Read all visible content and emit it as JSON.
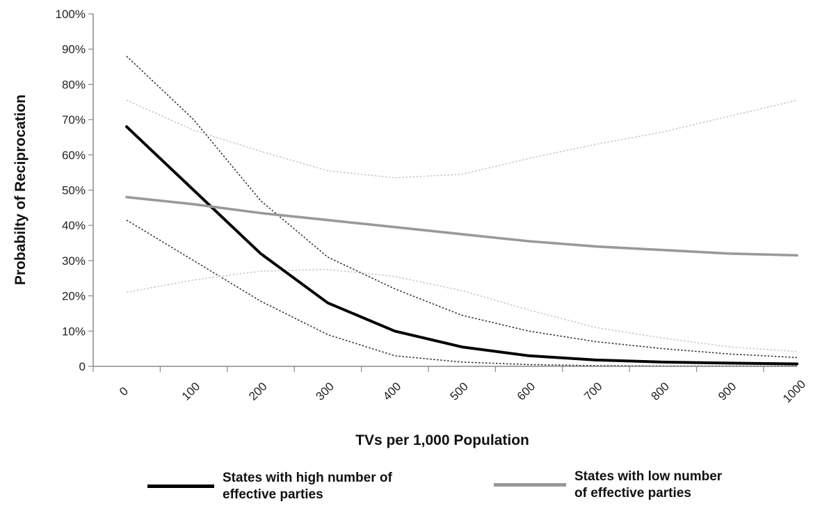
{
  "chart_data": {
    "type": "line",
    "title": "",
    "xlabel": "TVs per 1,000 Population",
    "ylabel": "Probabilty of Reciprocation",
    "x": [
      0,
      100,
      200,
      300,
      400,
      500,
      600,
      700,
      800,
      900,
      1000
    ],
    "x_tick_labels": [
      "0",
      "100",
      "200",
      "300",
      "400",
      "500",
      "600",
      "700",
      "800",
      "900",
      "1000"
    ],
    "y_tick_labels": [
      "0",
      "10%",
      "20%",
      "30%",
      "40%",
      "50%",
      "60%",
      "70%",
      "80%",
      "90%",
      "100%"
    ],
    "xlim": [
      0,
      1000
    ],
    "ylim": [
      0,
      100
    ],
    "grid": false,
    "legend_position": "bottom",
    "series": [
      {
        "name": "States with high number of effective parties",
        "color": "#000000",
        "style": "solid",
        "values": [
          68,
          50,
          32,
          18,
          10,
          5.5,
          3,
          1.8,
          1.2,
          0.9,
          0.7
        ]
      },
      {
        "name": "States with low number of effective parties",
        "color": "#999999",
        "style": "solid",
        "values": [
          48,
          46,
          43.5,
          41.5,
          39.5,
          37.5,
          35.5,
          34,
          33,
          32,
          31.5
        ]
      }
    ],
    "confidence_bands": [
      {
        "series": "States with high number of effective parties",
        "color": "#333333",
        "upper": [
          88,
          70,
          47,
          31,
          22,
          14.5,
          10,
          7,
          5,
          3.5,
          2.5
        ],
        "lower": [
          41.5,
          30,
          18.5,
          9,
          3,
          1.2,
          0.5,
          0.2,
          0.1,
          0.1,
          0.1
        ]
      },
      {
        "series": "States with low number of effective parties",
        "color": "#c8c8c8",
        "upper": [
          75.5,
          67,
          61,
          55.5,
          53.5,
          54.5,
          59,
          63,
          66.5,
          71,
          75.5
        ],
        "lower": [
          21,
          24.5,
          27,
          27.5,
          25.5,
          21.5,
          16,
          11,
          8,
          5.5,
          4.2
        ]
      }
    ]
  },
  "legend": {
    "items": [
      {
        "label": "States with high number of\neffective parties",
        "color": "#000000"
      },
      {
        "label": "States with low number\nof effective parties",
        "color": "#999999"
      }
    ]
  }
}
